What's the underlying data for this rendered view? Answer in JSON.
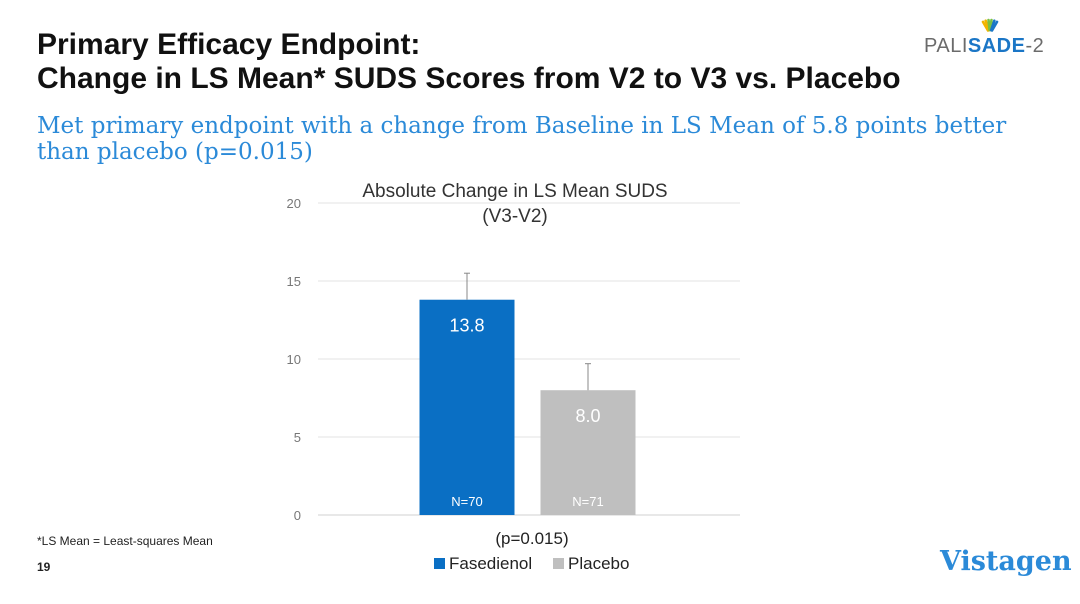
{
  "slide": {
    "title_line1": "Primary Efficacy Endpoint:",
    "title_line2": "Change in LS Mean* SUDS Scores from V2 to V3 vs. Placebo",
    "subtitle": "Met primary endpoint with a change from Baseline in LS Mean of 5.8 points better than placebo (p=0.015)",
    "logo": {
      "text_pre": "PALI",
      "text_bold": "SADE",
      "text_post": "-2",
      "icon": "sunburst-icon",
      "colors": [
        "#f2b400",
        "#7ac143",
        "#1b76c6"
      ]
    },
    "footnote": "*LS Mean = Least-squares Mean",
    "page_number": "19",
    "brand": "Vistagen"
  },
  "chart_data": {
    "type": "bar",
    "title": "Absolute Change in LS Mean SUDS",
    "subtitle": "(V3-V2)",
    "categories": [
      "Fasedienol",
      "Placebo"
    ],
    "values": [
      13.8,
      8.0
    ],
    "value_labels": [
      "13.8",
      "8.0"
    ],
    "error_upper": [
      15.5,
      9.7
    ],
    "n_labels": [
      "N=70",
      "N=71"
    ],
    "colors": [
      "#0a6fc4",
      "#bfbfbf"
    ],
    "xlabel": "(p=0.015)",
    "ylim": [
      0,
      20
    ],
    "yticks": [
      0,
      5,
      10,
      15,
      20
    ],
    "grid": true,
    "legend": {
      "position": "bottom",
      "entries": [
        "Fasedienol",
        "Placebo"
      ]
    }
  }
}
